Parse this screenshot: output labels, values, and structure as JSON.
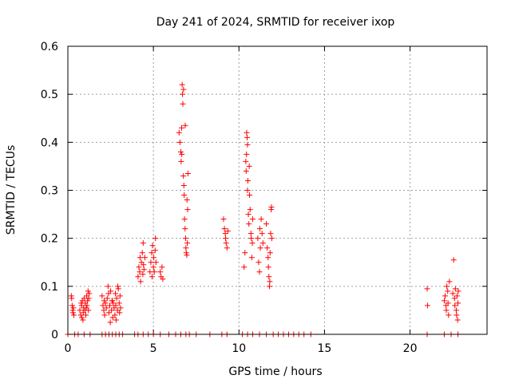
{
  "chart_data": {
    "type": "scatter",
    "title": "Day 241 of 2024, SRMTID for receiver ixop",
    "xlabel": "GPS time / hours",
    "ylabel": "SRMTID / TECUs",
    "xlim": [
      0,
      24.5
    ],
    "ylim": [
      0,
      0.6
    ],
    "xticks": [
      0,
      5,
      10,
      15,
      20
    ],
    "yticks": [
      0,
      0.1,
      0.2,
      0.3,
      0.4,
      0.5,
      0.6
    ],
    "xtick_labels": [
      "0",
      "5",
      "10",
      "15",
      "20"
    ],
    "ytick_labels": [
      "0",
      "0.1",
      "0.2",
      "0.3",
      "0.4",
      "0.5",
      "0.6"
    ],
    "grid": true,
    "marker": "+",
    "color": "#ff0000",
    "series": [
      {
        "name": "SRMTID",
        "points": [
          [
            0.2,
            0.08
          ],
          [
            0.22,
            0.075
          ],
          [
            0.25,
            0.06
          ],
          [
            0.28,
            0.05
          ],
          [
            0.3,
            0.045
          ],
          [
            0.32,
            0.055
          ],
          [
            0.35,
            0.04
          ],
          [
            0.7,
            0.05
          ],
          [
            0.75,
            0.04
          ],
          [
            0.8,
            0.06
          ],
          [
            0.82,
            0.035
          ],
          [
            0.85,
            0.07
          ],
          [
            0.9,
            0.045
          ],
          [
            0.92,
            0.055
          ],
          [
            0.95,
            0.075
          ],
          [
            1.0,
            0.05
          ],
          [
            1.02,
            0.065
          ],
          [
            1.05,
            0.04
          ],
          [
            1.1,
            0.08
          ],
          [
            1.12,
            0.06
          ],
          [
            1.15,
            0.07
          ],
          [
            1.18,
            0.09
          ],
          [
            1.2,
            0.05
          ],
          [
            1.22,
            0.075
          ],
          [
            1.25,
            0.085
          ],
          [
            0.78,
            0.065
          ],
          [
            0.88,
            0.03
          ],
          [
            1.08,
            0.055
          ],
          [
            2.0,
            0.08
          ],
          [
            2.05,
            0.06
          ],
          [
            2.1,
            0.05
          ],
          [
            2.12,
            0.07
          ],
          [
            2.15,
            0.04
          ],
          [
            2.2,
            0.065
          ],
          [
            2.25,
            0.055
          ],
          [
            2.3,
            0.075
          ],
          [
            2.35,
            0.1
          ],
          [
            2.38,
            0.085
          ],
          [
            2.4,
            0.045
          ],
          [
            2.45,
            0.06
          ],
          [
            2.5,
            0.09
          ],
          [
            2.55,
            0.05
          ],
          [
            2.6,
            0.07
          ],
          [
            2.62,
            0.035
          ],
          [
            2.65,
            0.065
          ],
          [
            2.7,
            0.055
          ],
          [
            2.75,
            0.04
          ],
          [
            2.8,
            0.06
          ],
          [
            2.82,
            0.03
          ],
          [
            2.85,
            0.075
          ],
          [
            2.9,
            0.05
          ],
          [
            2.92,
            0.1
          ],
          [
            2.95,
            0.095
          ],
          [
            3.0,
            0.065
          ],
          [
            3.02,
            0.045
          ],
          [
            3.05,
            0.08
          ],
          [
            2.48,
            0.025
          ],
          [
            2.58,
            0.07
          ],
          [
            2.78,
            0.085
          ],
          [
            3.08,
            0.055
          ],
          [
            4.1,
            0.12
          ],
          [
            4.15,
            0.14
          ],
          [
            4.2,
            0.13
          ],
          [
            4.22,
            0.16
          ],
          [
            4.25,
            0.11
          ],
          [
            4.3,
            0.15
          ],
          [
            4.35,
            0.17
          ],
          [
            4.38,
            0.125
          ],
          [
            4.4,
            0.19
          ],
          [
            4.42,
            0.145
          ],
          [
            4.45,
            0.135
          ],
          [
            4.5,
            0.16
          ],
          [
            4.8,
            0.13
          ],
          [
            4.85,
            0.15
          ],
          [
            4.9,
            0.17
          ],
          [
            4.92,
            0.12
          ],
          [
            4.95,
            0.185
          ],
          [
            5.0,
            0.14
          ],
          [
            5.02,
            0.16
          ],
          [
            5.05,
            0.13
          ],
          [
            5.1,
            0.175
          ],
          [
            5.12,
            0.2
          ],
          [
            5.15,
            0.15
          ],
          [
            5.4,
            0.13
          ],
          [
            5.45,
            0.12
          ],
          [
            5.5,
            0.14
          ],
          [
            5.55,
            0.115
          ],
          [
            6.5,
            0.42
          ],
          [
            6.55,
            0.4
          ],
          [
            6.6,
            0.38
          ],
          [
            6.62,
            0.36
          ],
          [
            6.65,
            0.43
          ],
          [
            6.68,
            0.52
          ],
          [
            6.7,
            0.5
          ],
          [
            6.72,
            0.48
          ],
          [
            6.75,
            0.33
          ],
          [
            6.78,
            0.31
          ],
          [
            6.8,
            0.29
          ],
          [
            6.82,
            0.24
          ],
          [
            6.85,
            0.22
          ],
          [
            6.88,
            0.2
          ],
          [
            6.9,
            0.18
          ],
          [
            6.92,
            0.17
          ],
          [
            6.95,
            0.165
          ],
          [
            6.98,
            0.19
          ],
          [
            7.0,
            0.26
          ],
          [
            7.02,
            0.335
          ],
          [
            6.66,
            0.375
          ],
          [
            6.76,
            0.51
          ],
          [
            6.86,
            0.435
          ],
          [
            6.96,
            0.28
          ],
          [
            9.1,
            0.24
          ],
          [
            9.15,
            0.22
          ],
          [
            9.2,
            0.21
          ],
          [
            9.22,
            0.2
          ],
          [
            9.25,
            0.19
          ],
          [
            9.3,
            0.18
          ],
          [
            9.35,
            0.215
          ],
          [
            10.3,
            0.14
          ],
          [
            10.35,
            0.17
          ],
          [
            10.4,
            0.36
          ],
          [
            10.42,
            0.34
          ],
          [
            10.45,
            0.42
          ],
          [
            10.48,
            0.41
          ],
          [
            10.5,
            0.3
          ],
          [
            10.52,
            0.32
          ],
          [
            10.55,
            0.25
          ],
          [
            10.58,
            0.23
          ],
          [
            10.6,
            0.35
          ],
          [
            10.62,
            0.29
          ],
          [
            10.65,
            0.26
          ],
          [
            10.7,
            0.21
          ],
          [
            10.72,
            0.2
          ],
          [
            10.75,
            0.16
          ],
          [
            10.78,
            0.19
          ],
          [
            10.8,
            0.24
          ],
          [
            10.5,
            0.395
          ],
          [
            10.44,
            0.375
          ],
          [
            11.1,
            0.2
          ],
          [
            11.15,
            0.15
          ],
          [
            11.2,
            0.13
          ],
          [
            11.22,
            0.22
          ],
          [
            11.25,
            0.18
          ],
          [
            11.3,
            0.24
          ],
          [
            11.35,
            0.21
          ],
          [
            11.4,
            0.19
          ],
          [
            11.6,
            0.23
          ],
          [
            11.65,
            0.18
          ],
          [
            11.7,
            0.16
          ],
          [
            11.72,
            0.14
          ],
          [
            11.75,
            0.12
          ],
          [
            11.78,
            0.1
          ],
          [
            11.8,
            0.11
          ],
          [
            11.82,
            0.17
          ],
          [
            11.85,
            0.21
          ],
          [
            11.88,
            0.26
          ],
          [
            11.9,
            0.265
          ],
          [
            11.92,
            0.2
          ],
          [
            21.0,
            0.095
          ],
          [
            21.02,
            0.06
          ],
          [
            22.0,
            0.07
          ],
          [
            22.05,
            0.08
          ],
          [
            22.1,
            0.06
          ],
          [
            22.12,
            0.05
          ],
          [
            22.15,
            0.1
          ],
          [
            22.2,
            0.09
          ],
          [
            22.22,
            0.065
          ],
          [
            22.25,
            0.04
          ],
          [
            22.3,
            0.11
          ],
          [
            22.5,
            0.085
          ],
          [
            22.55,
            0.155
          ],
          [
            22.6,
            0.075
          ],
          [
            22.62,
            0.06
          ],
          [
            22.65,
            0.095
          ],
          [
            22.7,
            0.05
          ],
          [
            22.72,
            0.04
          ],
          [
            22.75,
            0.08
          ],
          [
            22.78,
            0.03
          ],
          [
            22.8,
            0.065
          ],
          [
            22.82,
            0.09
          ],
          [
            0.0,
            0.0
          ],
          [
            0.4,
            0.0
          ],
          [
            0.6,
            0.0
          ],
          [
            0.95,
            0.0
          ],
          [
            1.3,
            0.0
          ],
          [
            2.0,
            0.0
          ],
          [
            2.2,
            0.0
          ],
          [
            2.4,
            0.0
          ],
          [
            2.6,
            0.0
          ],
          [
            2.8,
            0.0
          ],
          [
            3.0,
            0.0
          ],
          [
            3.2,
            0.0
          ],
          [
            3.9,
            0.0
          ],
          [
            4.1,
            0.0
          ],
          [
            4.4,
            0.0
          ],
          [
            4.7,
            0.0
          ],
          [
            5.0,
            0.0
          ],
          [
            5.4,
            0.0
          ],
          [
            5.9,
            0.0
          ],
          [
            6.3,
            0.0
          ],
          [
            6.6,
            0.0
          ],
          [
            6.9,
            0.0
          ],
          [
            7.1,
            0.0
          ],
          [
            7.5,
            0.0
          ],
          [
            8.3,
            0.0
          ],
          [
            9.0,
            0.0
          ],
          [
            9.3,
            0.0
          ],
          [
            10.2,
            0.0
          ],
          [
            10.5,
            0.0
          ],
          [
            10.8,
            0.0
          ],
          [
            11.2,
            0.0
          ],
          [
            11.6,
            0.0
          ],
          [
            12.0,
            0.0
          ],
          [
            12.3,
            0.0
          ],
          [
            12.6,
            0.0
          ],
          [
            12.9,
            0.0
          ],
          [
            13.2,
            0.0
          ],
          [
            13.5,
            0.0
          ],
          [
            13.8,
            0.0
          ],
          [
            14.2,
            0.0
          ],
          [
            21.0,
            0.0
          ],
          [
            22.0,
            0.0
          ],
          [
            22.4,
            0.0
          ],
          [
            22.8,
            0.0
          ]
        ]
      }
    ]
  }
}
